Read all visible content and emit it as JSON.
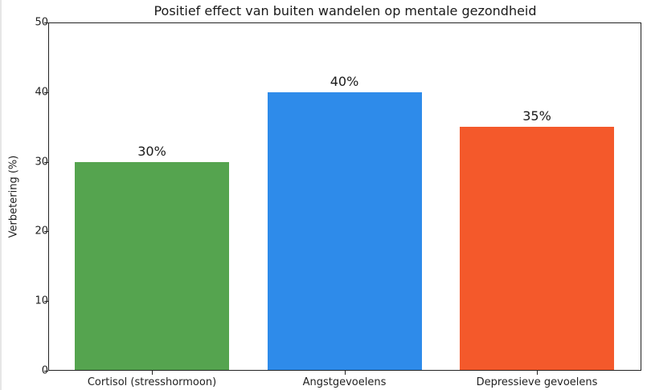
{
  "chart_data": {
    "type": "bar",
    "title": "Positief effect van buiten wandelen op mentale gezondheid",
    "xlabel": "",
    "ylabel": "Verbetering (%)",
    "categories": [
      "Cortisol (stresshormoon)",
      "Angstgevoelens",
      "Depressieve gevoelens"
    ],
    "values": [
      30,
      40,
      35
    ],
    "value_labels": [
      "30%",
      "40%",
      "35%"
    ],
    "colors": [
      "#55a44f",
      "#2e8bea",
      "#f4592b"
    ],
    "ylim": [
      0,
      50
    ],
    "yticks": [
      0,
      10,
      20,
      30,
      40,
      50
    ],
    "grid": false,
    "legend": null
  },
  "title": "Positief effect van buiten wandelen op mentale gezondheid",
  "ylabel": "Verbetering (%)",
  "yticks": [
    "0",
    "10",
    "20",
    "30",
    "40",
    "50"
  ],
  "bars": [
    {
      "category": "Cortisol (stresshormoon)",
      "value": 30,
      "label": "30%",
      "color": "#55a44f"
    },
    {
      "category": "Angstgevoelens",
      "value": 40,
      "label": "40%",
      "color": "#2e8bea"
    },
    {
      "category": "Depressieve gevoelens",
      "value": 35,
      "label": "35%",
      "color": "#f4592b"
    }
  ]
}
